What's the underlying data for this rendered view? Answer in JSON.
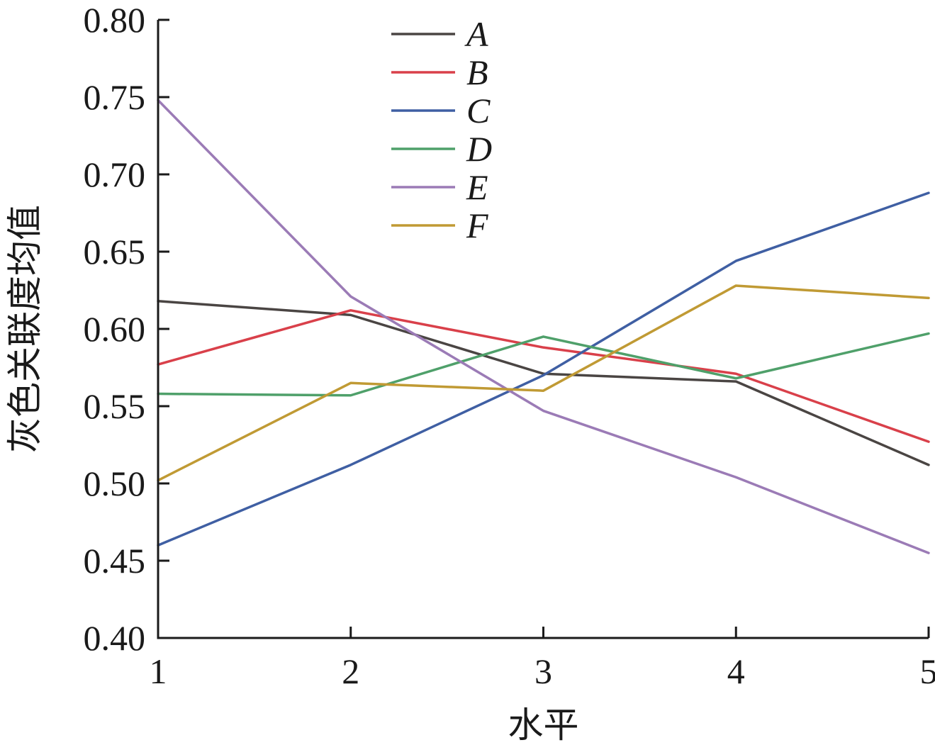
{
  "chart_data": {
    "type": "line",
    "title": "",
    "xlabel": "水平",
    "ylabel": "灰色关联度均值",
    "x": [
      1,
      2,
      3,
      4,
      5
    ],
    "x_tick_labels": [
      "1",
      "2",
      "3",
      "4",
      "5"
    ],
    "xlim": [
      1,
      5
    ],
    "ylim": [
      0.4,
      0.8
    ],
    "y_ticks": [
      0.4,
      0.45,
      0.5,
      0.55,
      0.6,
      0.65,
      0.7,
      0.75,
      0.8
    ],
    "y_tick_labels": [
      "0.40",
      "0.45",
      "0.50",
      "0.55",
      "0.60",
      "0.65",
      "0.70",
      "0.75",
      "0.80"
    ],
    "grid": false,
    "legend_position": "top-center",
    "series": [
      {
        "name": "A",
        "color": "#4a4543",
        "values": [
          0.618,
          0.609,
          0.571,
          0.566,
          0.512
        ]
      },
      {
        "name": "B",
        "color": "#d9404a",
        "values": [
          0.577,
          0.612,
          0.588,
          0.571,
          0.527
        ]
      },
      {
        "name": "C",
        "color": "#3f5fa3",
        "values": [
          0.46,
          0.512,
          0.57,
          0.644,
          0.688
        ]
      },
      {
        "name": "D",
        "color": "#4fa06a",
        "values": [
          0.558,
          0.557,
          0.595,
          0.568,
          0.597
        ]
      },
      {
        "name": "E",
        "color": "#9b7bb6",
        "values": [
          0.748,
          0.621,
          0.547,
          0.504,
          0.455
        ]
      },
      {
        "name": "F",
        "color": "#c09a34",
        "values": [
          0.502,
          0.565,
          0.56,
          0.628,
          0.62
        ]
      }
    ]
  }
}
